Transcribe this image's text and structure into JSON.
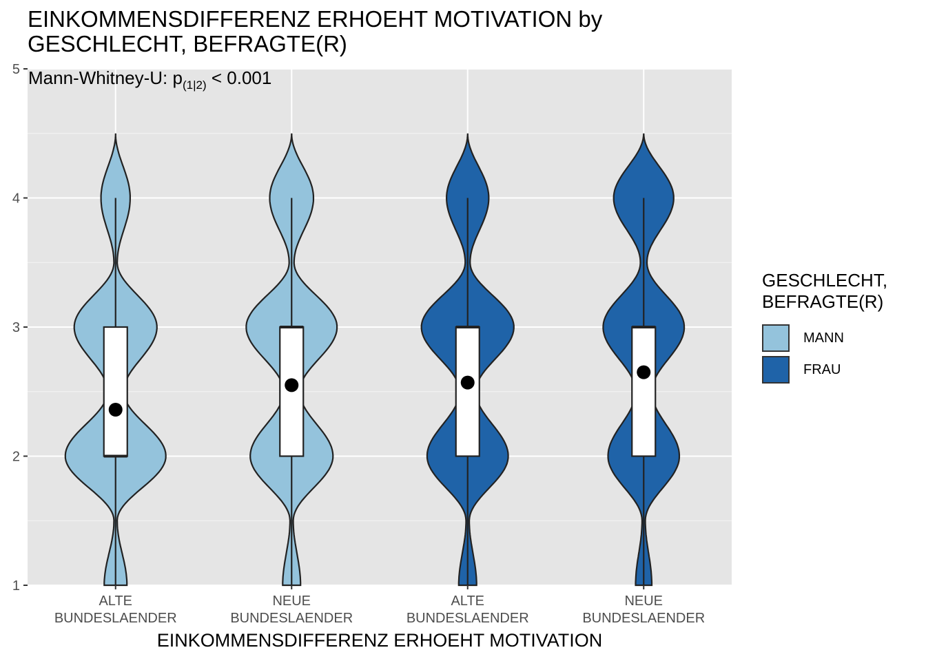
{
  "title_lines": [
    "EINKOMMENSDIFFERENZ ERHOEHT MOTIVATION by",
    "GESCHLECHT, BEFRAGTE(R)"
  ],
  "subtitle": {
    "prefix": "Mann-Whitney-U:  p",
    "subscript": "(1|2)",
    "suffix": " < 0.001"
  },
  "legend": {
    "title_lines": [
      "GESCHLECHT,",
      "BEFRAGTE(R)"
    ],
    "items": [
      {
        "label": "MANN",
        "color": "#94c3dc"
      },
      {
        "label": "FRAU",
        "color": "#1f63a8"
      }
    ]
  },
  "colors": {
    "panel_background": "#e5e5e5",
    "grid_major": "#ffffff",
    "outline": "#222222",
    "mean_point": "#000000",
    "box_fill": "#ffffff"
  },
  "chart_data": {
    "type": "violin",
    "xlabel": "EINKOMMENSDIFFERENZ ERHOEHT MOTIVATION",
    "ylabel": "",
    "ylim": [
      1,
      5
    ],
    "yticks": [
      "1",
      "2",
      "3",
      "4",
      "5"
    ],
    "grid": true,
    "legend_position": "right",
    "categories": [
      {
        "label_lines": [
          "ALTE",
          "BUNDESLAENDER"
        ],
        "group": "MANN",
        "median": 2,
        "q1": 2,
        "q3": 3,
        "whisker_low": 1,
        "whisker_high": 4,
        "mean": 2.36,
        "density": {
          "1": 0.14,
          "2": 0.62,
          "3": 0.51,
          "4": 0.18,
          "1.5": 0.02,
          "2.5": 0.1,
          "3.5": 0.02,
          "4.5": 0.0
        }
      },
      {
        "label_lines": [
          "NEUE",
          "BUNDESLAENDER"
        ],
        "group": "MANN",
        "median": 3,
        "q1": 2,
        "q3": 3,
        "whisker_low": 1,
        "whisker_high": 4,
        "mean": 2.55,
        "density": {
          "1": 0.11,
          "2": 0.51,
          "3": 0.56,
          "4": 0.27,
          "1.5": 0.02,
          "2.5": 0.1,
          "3.5": 0.03,
          "4.5": 0.0
        }
      },
      {
        "label_lines": [
          "ALTE",
          "BUNDESLAENDER"
        ],
        "group": "FRAU",
        "median": 3,
        "q1": 2,
        "q3": 3,
        "whisker_low": 1,
        "whisker_high": 4,
        "mean": 2.57,
        "density": {
          "1": 0.11,
          "2": 0.5,
          "3": 0.57,
          "4": 0.26,
          "1.5": 0.02,
          "2.5": 0.1,
          "3.5": 0.03,
          "4.5": 0.0
        }
      },
      {
        "label_lines": [
          "NEUE",
          "BUNDESLAENDER"
        ],
        "group": "FRAU",
        "median": 3,
        "q1": 2,
        "q3": 3,
        "whisker_low": 1,
        "whisker_high": 4,
        "mean": 2.65,
        "density": {
          "1": 0.1,
          "2": 0.44,
          "3": 0.5,
          "4": 0.37,
          "1.5": 0.02,
          "2.5": 0.1,
          "3.5": 0.04,
          "4.5": 0.0
        }
      }
    ]
  }
}
